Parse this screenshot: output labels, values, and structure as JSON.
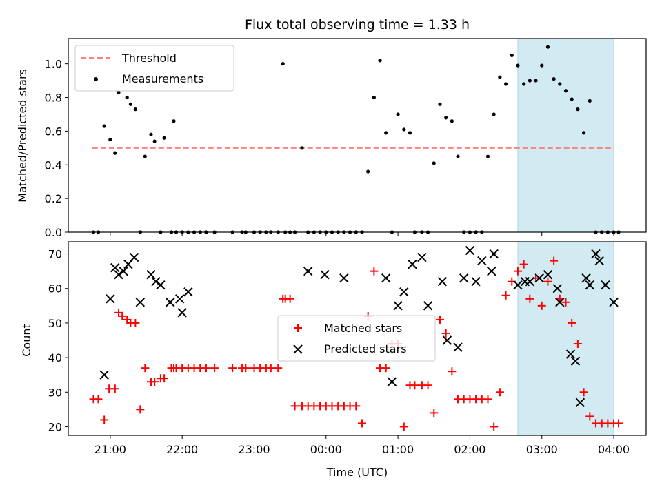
{
  "colors": {
    "threshold": "#ff8080",
    "measurement": "#000000",
    "matched": "#ff0000",
    "predicted": "#000000",
    "shade": "#add8e6"
  },
  "chart_data": [
    {
      "type": "scatter",
      "title": "Flux total observing time = 1.33 h",
      "xlabel": "",
      "ylabel": "Matched/Predicted stars",
      "xlim": [
        "20:25",
        "04:27"
      ],
      "ylim": [
        0,
        1.15
      ],
      "yticks": [
        "0.0",
        "0.2",
        "0.4",
        "0.6",
        "0.8",
        "1.0"
      ],
      "shaded_span": [
        "02:40",
        "04:00"
      ],
      "legend": {
        "placement": "upper-left",
        "entries": [
          "Threshold",
          "Measurements"
        ]
      },
      "series": [
        {
          "name": "Threshold",
          "kind": "dashed-line",
          "x": [
            "20:45",
            "04:00"
          ],
          "y": [
            0.5,
            0.5
          ]
        },
        {
          "name": "Measurements",
          "kind": "dots",
          "x": [
            "20:46",
            "20:50",
            "20:55",
            "21:00",
            "21:04",
            "21:07",
            "21:14",
            "21:17",
            "21:21",
            "21:25",
            "21:29",
            "21:34",
            "21:37",
            "21:42",
            "21:45",
            "21:51",
            "21:53",
            "21:55",
            "22:00",
            "22:05",
            "22:10",
            "22:15",
            "22:20",
            "22:27",
            "22:42",
            "22:50",
            "22:53",
            "23:00",
            "23:05",
            "23:10",
            "23:14",
            "23:20",
            "23:24",
            "23:26",
            "23:30",
            "23:34",
            "23:40",
            "23:45",
            "23:50",
            "23:55",
            "00:00",
            "00:05",
            "00:10",
            "00:15",
            "00:20",
            "00:25",
            "00:30",
            "00:35",
            "00:40",
            "00:45",
            "00:50",
            "00:55",
            "01:00",
            "01:05",
            "01:10",
            "01:14",
            "01:20",
            "01:25",
            "01:30",
            "01:35",
            "01:40",
            "01:45",
            "01:50",
            "01:55",
            "02:00",
            "02:05",
            "02:10",
            "02:15",
            "02:20",
            "02:25",
            "02:30",
            "02:35",
            "02:40",
            "02:45",
            "02:50",
            "02:55",
            "03:00",
            "03:05",
            "03:10",
            "03:15",
            "03:20",
            "03:25",
            "03:30",
            "03:35",
            "03:40",
            "03:45",
            "03:50",
            "03:55",
            "04:00",
            "04:04"
          ],
          "y": [
            0,
            0,
            0.63,
            0.55,
            0.47,
            0.83,
            0.8,
            0.76,
            0.73,
            0,
            0.45,
            0.58,
            0.54,
            0,
            0.56,
            0,
            0.66,
            0,
            0,
            0,
            0,
            0,
            0,
            0,
            0,
            0,
            0,
            0,
            0,
            0,
            0,
            0,
            1.0,
            0,
            0,
            0,
            0.5,
            0,
            0,
            0,
            0,
            0,
            0,
            0,
            0,
            0,
            0,
            0.36,
            0.8,
            1.02,
            0.59,
            0,
            0.7,
            0.61,
            0.59,
            0,
            0,
            0,
            0.41,
            0.76,
            0.68,
            0.66,
            0.45,
            0,
            0,
            0,
            0,
            0.45,
            0.7,
            0.92,
            0.88,
            1.05,
            0.99,
            0.88,
            0.9,
            0.9,
            0.99,
            1.1,
            0.91,
            0.88,
            0.84,
            0.79,
            0.73,
            0.59,
            0.78,
            0,
            0,
            0,
            0,
            0
          ]
        }
      ]
    },
    {
      "type": "scatter",
      "title": "",
      "xlabel": "Time (UTC)",
      "ylabel": "Count",
      "xlim": [
        "20:25",
        "04:27"
      ],
      "ylim": [
        17.5,
        73.5
      ],
      "xticks": [
        "21:00",
        "22:00",
        "23:00",
        "00:00",
        "01:00",
        "02:00",
        "03:00",
        "04:00"
      ],
      "yticks": [
        "20",
        "30",
        "40",
        "50",
        "60",
        "70"
      ],
      "shaded_span": [
        "02:40",
        "04:00"
      ],
      "legend": {
        "placement": "center",
        "entries": [
          "Matched stars",
          "Predicted stars"
        ]
      },
      "series": [
        {
          "name": "Matched stars",
          "marker": "plus",
          "x": [
            "20:46",
            "20:50",
            "20:55",
            "20:59",
            "21:04",
            "21:07",
            "21:10",
            "21:14",
            "21:17",
            "21:21",
            "21:25",
            "21:29",
            "21:34",
            "21:37",
            "21:42",
            "21:45",
            "21:51",
            "21:53",
            "21:55",
            "22:00",
            "22:05",
            "22:10",
            "22:15",
            "22:20",
            "22:27",
            "22:42",
            "22:50",
            "22:53",
            "23:00",
            "23:05",
            "23:10",
            "23:14",
            "23:20",
            "23:24",
            "23:26",
            "23:30",
            "23:34",
            "23:40",
            "23:45",
            "23:50",
            "23:55",
            "00:00",
            "00:05",
            "00:10",
            "00:15",
            "00:20",
            "00:25",
            "00:30",
            "00:35",
            "00:40",
            "00:45",
            "00:50",
            "00:55",
            "01:00",
            "01:05",
            "01:10",
            "01:14",
            "01:20",
            "01:25",
            "01:30",
            "01:35",
            "01:40",
            "01:45",
            "01:50",
            "01:55",
            "02:00",
            "02:05",
            "02:10",
            "02:15",
            "02:20",
            "02:25",
            "02:30",
            "02:35",
            "02:40",
            "02:45",
            "02:50",
            "02:55",
            "03:00",
            "03:05",
            "03:10",
            "03:15",
            "03:20",
            "03:25",
            "03:30",
            "03:35",
            "03:40",
            "03:45",
            "03:50",
            "03:55",
            "04:00",
            "04:04"
          ],
          "y": [
            28,
            28,
            22,
            31,
            31,
            53,
            52,
            51,
            50,
            50,
            25,
            37,
            33,
            33,
            34,
            34,
            37,
            37,
            37,
            37,
            37,
            37,
            37,
            37,
            37,
            37,
            37,
            37,
            37,
            37,
            37,
            37,
            37,
            57,
            57,
            57,
            26,
            26,
            26,
            26,
            26,
            26,
            26,
            26,
            26,
            26,
            26,
            21,
            52,
            65,
            37,
            37,
            44,
            44,
            20,
            32,
            32,
            32,
            32,
            24,
            51,
            47,
            36,
            28,
            28,
            28,
            28,
            28,
            28,
            20,
            30,
            58,
            62,
            65,
            67,
            57,
            63,
            55,
            62,
            68,
            57,
            56,
            50,
            44,
            30,
            23,
            21,
            21,
            21,
            21,
            21
          ]
        },
        {
          "name": "Predicted stars",
          "marker": "x",
          "x": [
            "20:55",
            "21:00",
            "21:04",
            "21:07",
            "21:11",
            "21:15",
            "21:20",
            "21:25",
            "21:34",
            "21:38",
            "21:42",
            "21:50",
            "21:58",
            "22:00",
            "22:05",
            "23:45",
            "23:59",
            "00:15",
            "00:50",
            "00:55",
            "01:00",
            "01:05",
            "01:12",
            "01:20",
            "01:25",
            "01:37",
            "01:41",
            "01:50",
            "01:55",
            "02:00",
            "02:05",
            "02:10",
            "02:18",
            "02:20",
            "02:40",
            "02:46",
            "02:50",
            "02:58",
            "03:05",
            "03:13",
            "03:15",
            "03:24",
            "03:28",
            "03:32",
            "03:37",
            "03:40",
            "03:45",
            "03:48",
            "03:53",
            "04:00"
          ],
          "y": [
            35,
            57,
            66,
            64,
            65,
            67,
            69,
            56,
            64,
            62,
            61,
            56,
            57,
            53,
            59,
            65,
            64,
            63,
            63,
            33,
            55,
            59,
            67,
            69,
            55,
            62,
            45,
            43,
            63,
            71,
            62,
            68,
            65,
            70,
            61,
            62,
            62,
            63,
            64,
            60,
            56,
            41,
            39,
            27,
            63,
            61,
            70,
            68,
            61,
            56
          ]
        }
      ]
    }
  ]
}
